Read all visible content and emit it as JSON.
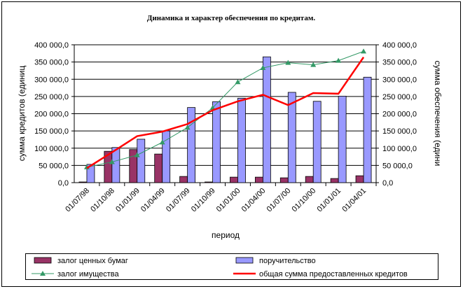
{
  "chart_data": {
    "type": "bar+line",
    "title": "Динамика и характер обеспечения по кредитам.",
    "xlabel": "период",
    "ylabel_left": "сумма кредитов (единиц",
    "ylabel_right": "сумма обеспечения (едини",
    "ylim": [
      0,
      400000
    ],
    "yticks": [
      "0,0",
      "50 000,0",
      "100 000,0",
      "150 000,0",
      "200 000,0",
      "250 000,0",
      "300 000,0",
      "350 000,0",
      "400 000,0"
    ],
    "categories": [
      "01/07/98",
      "01/10/98",
      "01/01/99",
      "01/04/99",
      "01/07/99",
      "01/10/99",
      "01/01/00",
      "01/04/00",
      "01/07/00",
      "01/10/00",
      "01/01/01",
      "01/04/01"
    ],
    "series": [
      {
        "name": "залог ценных бумаг",
        "kind": "bar",
        "color": "#993366",
        "values": [
          2000,
          91000,
          96000,
          83000,
          18000,
          2000,
          16000,
          16000,
          14000,
          18000,
          12000,
          20000
        ]
      },
      {
        "name": "поручительство",
        "kind": "bar",
        "color": "#9999ff",
        "values": [
          53000,
          102000,
          126000,
          150000,
          218000,
          235000,
          245000,
          365000,
          262000,
          236000,
          251000,
          306000
        ]
      },
      {
        "name": "залог имущества",
        "kind": "line-marker",
        "color": "#339966",
        "values": [
          45000,
          60000,
          80000,
          117000,
          160000,
          217000,
          292000,
          333000,
          348000,
          342000,
          354000,
          381000
        ]
      },
      {
        "name": "общая сумма предоставленных кредитов",
        "kind": "line",
        "color": "#ff0000",
        "values": [
          42000,
          88000,
          135000,
          148000,
          170000,
          210000,
          236000,
          255000,
          225000,
          260000,
          258000,
          364000
        ]
      }
    ],
    "grid": true,
    "legend": "bottom"
  }
}
